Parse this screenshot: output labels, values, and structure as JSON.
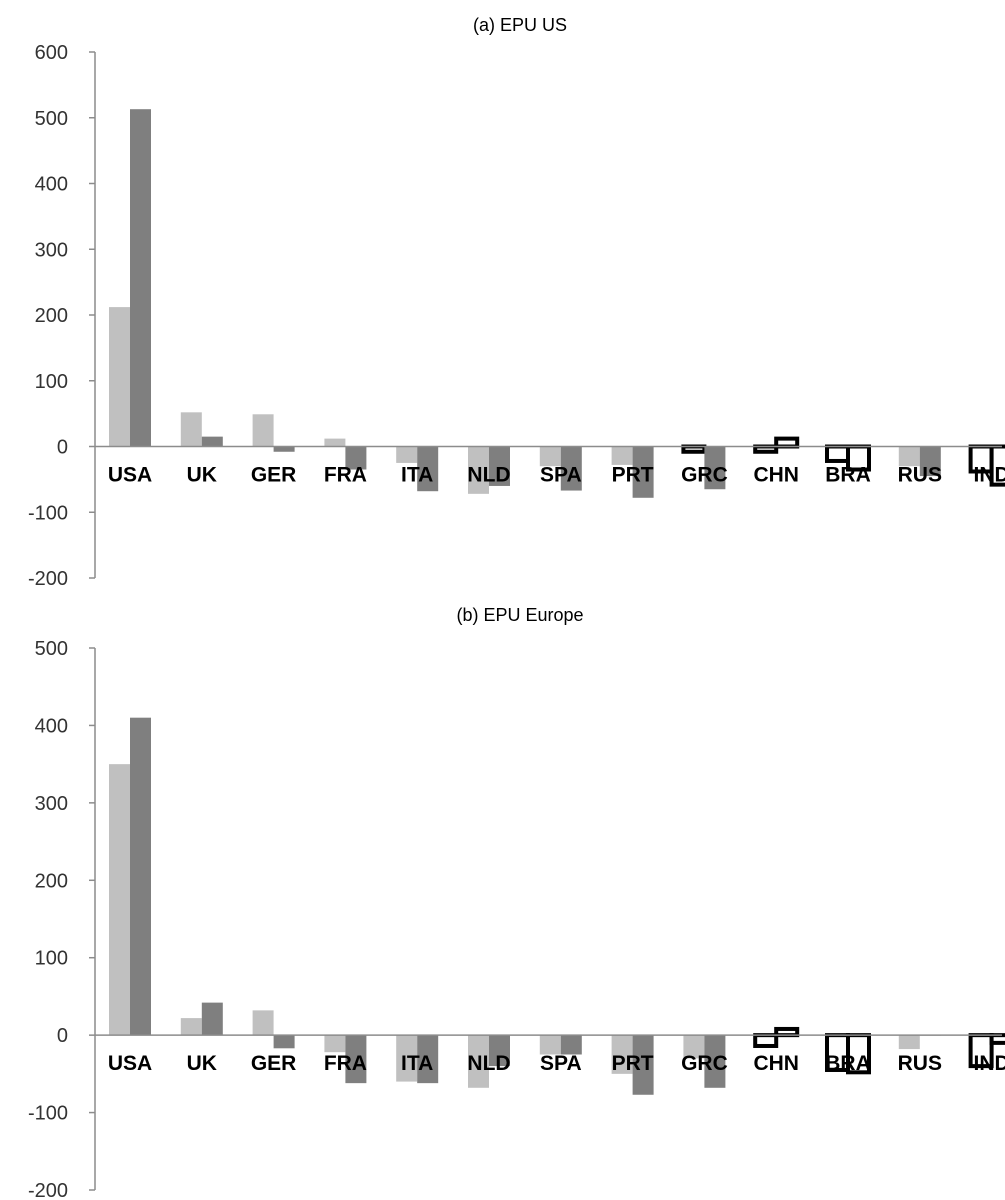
{
  "chart_data": [
    {
      "type": "bar",
      "title": "(a) EPU US",
      "categories": [
        "USA",
        "UK",
        "GER",
        "FRA",
        "ITA",
        "NLD",
        "SPA",
        "PRT",
        "GRC",
        "CHN",
        "BRA",
        "RUS",
        "IND"
      ],
      "series": [
        {
          "values": [
            212,
            52,
            49,
            12,
            -25,
            -72,
            -30,
            -28,
            -8,
            -8,
            -22,
            -30,
            -38
          ]
        },
        {
          "values": [
            513,
            15,
            -8,
            -35,
            -68,
            -60,
            -67,
            -78,
            -65,
            12,
            -35,
            -45,
            -58
          ]
        }
      ],
      "hollow_bars": [
        [
          false,
          false,
          false,
          false,
          false,
          false,
          false,
          false,
          true,
          true,
          true,
          false,
          true
        ],
        [
          false,
          false,
          false,
          false,
          false,
          false,
          false,
          false,
          false,
          true,
          true,
          false,
          true
        ]
      ],
      "ylim": [
        -200,
        600
      ],
      "yticks": [
        600,
        500,
        400,
        300,
        200,
        100,
        0,
        -100,
        -200
      ],
      "xlabel": "",
      "ylabel": "",
      "grid": false,
      "legend": "none"
    },
    {
      "type": "bar",
      "title": "(b) EPU Europe",
      "categories": [
        "USA",
        "UK",
        "GER",
        "FRA",
        "ITA",
        "NLD",
        "SPA",
        "PRT",
        "GRC",
        "CHN",
        "BRA",
        "RUS",
        "IND"
      ],
      "series": [
        {
          "values": [
            350,
            22,
            32,
            -22,
            -60,
            -68,
            -25,
            -50,
            -30,
            -14,
            -45,
            -18,
            -40
          ]
        },
        {
          "values": [
            410,
            42,
            -17,
            -62,
            -62,
            -40,
            -25,
            -77,
            -68,
            8,
            -48,
            0,
            -10
          ]
        }
      ],
      "hollow_bars": [
        [
          false,
          false,
          false,
          false,
          false,
          false,
          false,
          false,
          false,
          true,
          true,
          false,
          true
        ],
        [
          false,
          false,
          false,
          false,
          false,
          false,
          false,
          false,
          false,
          true,
          true,
          false,
          true
        ]
      ],
      "ylim": [
        -200,
        500
      ],
      "yticks": [
        500,
        400,
        300,
        200,
        100,
        0,
        -100,
        -200
      ],
      "xlabel": "",
      "ylabel": "",
      "grid": false,
      "legend": "none"
    }
  ],
  "colors": {
    "series_light": "#c0c0c0",
    "series_dark": "#7f7f7f",
    "axis": "#8c8c8c",
    "hollow_stroke": "#000000"
  }
}
